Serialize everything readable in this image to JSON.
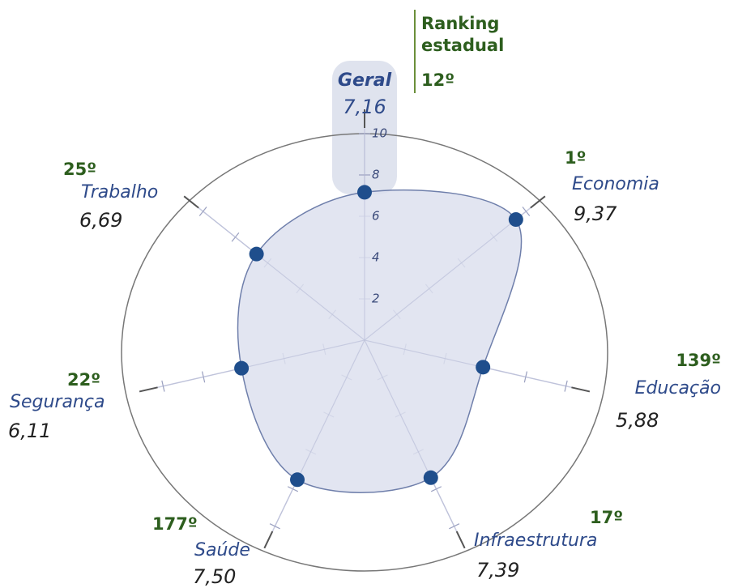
{
  "chart_data": {
    "type": "radar",
    "ranking_title": "Ranking estadual",
    "categories": [
      "Geral",
      "Economia",
      "Educação",
      "Infraestrutura",
      "Saúde",
      "Segurança",
      "Trabalho"
    ],
    "values": [
      7.16,
      9.37,
      5.88,
      7.39,
      7.5,
      6.11,
      6.69
    ],
    "value_labels": [
      "7,16",
      "9,37",
      "5,88",
      "7,39",
      "7,50",
      "6,11",
      "6,69"
    ],
    "rankings": [
      "12º",
      "1º",
      "139º",
      "17º",
      "177º",
      "22º",
      "25º"
    ],
    "ylim": [
      0,
      10
    ],
    "yticks": [
      2,
      4,
      6,
      8,
      10
    ],
    "color": "#1f4e8c",
    "fill": "#dde1ee"
  }
}
